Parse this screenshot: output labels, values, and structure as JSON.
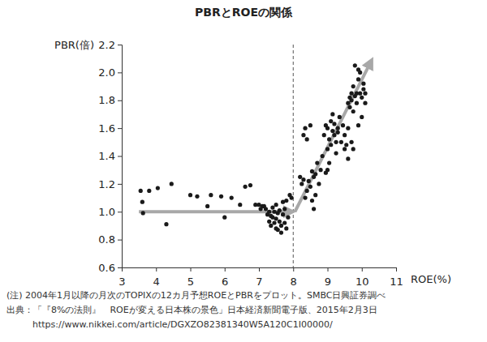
{
  "chart_data": {
    "type": "scatter",
    "title": "PBRとROEの関係",
    "x_label": "ROE(%)",
    "y_label": "PBR(倍)",
    "xlim": [
      3,
      11
    ],
    "ylim": [
      0.6,
      2.2
    ],
    "xticks": [
      3,
      4,
      5,
      6,
      7,
      8,
      9,
      10,
      11
    ],
    "yticks": [
      0.6,
      0.8,
      {
        "value": 1,
        "label": "1.0"
      },
      1.2,
      1.4,
      1.6,
      1.8,
      {
        "value": 2,
        "label": "2.0"
      },
      2.2
    ],
    "grid": false,
    "marker": "circle",
    "color": "#1a1a1a",
    "x": [
      3.55,
      3.6,
      3.62,
      3.8,
      4.05,
      4.3,
      4.45,
      5.0,
      5.2,
      5.5,
      5.6,
      5.9,
      6.0,
      6.2,
      6.45,
      6.6,
      6.75,
      6.9,
      7.0,
      7.05,
      7.1,
      7.15,
      7.2,
      7.25,
      7.3,
      7.3,
      7.35,
      7.35,
      7.4,
      7.4,
      7.45,
      7.45,
      7.5,
      7.5,
      7.5,
      7.55,
      7.55,
      7.6,
      7.6,
      7.65,
      7.65,
      7.7,
      7.7,
      7.75,
      7.75,
      7.8,
      7.8,
      7.85,
      7.9,
      7.95,
      8.2,
      8.25,
      8.3,
      8.35,
      8.4,
      8.45,
      8.5,
      8.55,
      8.55,
      8.6,
      8.6,
      8.65,
      8.65,
      8.7,
      8.75,
      8.8,
      8.3,
      8.35,
      8.4,
      8.5,
      8.85,
      8.9,
      8.95,
      9.0,
      9.0,
      9.05,
      9.05,
      9.1,
      9.1,
      9.15,
      9.15,
      9.2,
      9.2,
      9.25,
      9.25,
      9.3,
      9.3,
      9.35,
      9.4,
      9.45,
      9.5,
      9.5,
      9.0,
      8.95,
      9.55,
      9.6,
      9.6,
      9.65,
      9.65,
      9.7,
      9.7,
      9.75,
      9.75,
      9.8,
      9.8,
      9.85,
      9.85,
      9.9,
      9.9,
      9.95,
      9.95,
      10.0,
      10.0,
      10.05,
      10.05,
      10.1,
      10.1,
      9.7,
      9.75,
      9.9,
      9.6
    ],
    "values": [
      1.15,
      1.07,
      0.99,
      1.15,
      1.17,
      0.91,
      1.2,
      1.12,
      1.11,
      1.04,
      1.12,
      1.11,
      0.96,
      1.1,
      1.05,
      1.18,
      1.19,
      1.05,
      1.05,
      1.02,
      1.04,
      1.04,
      1.02,
      0.98,
      0.93,
      1.0,
      0.97,
      0.9,
      1.03,
      0.96,
      0.92,
      1.0,
      0.88,
      0.95,
      1.05,
      0.99,
      0.87,
      0.93,
      1.01,
      0.9,
      0.85,
      0.98,
      1.07,
      0.92,
      1.02,
      1.08,
      0.88,
      0.96,
      1.12,
      1.1,
      1.25,
      1.2,
      1.23,
      1.1,
      1.15,
      1.22,
      1.18,
      1.08,
      1.29,
      1.02,
      1.25,
      1.27,
      1.12,
      1.35,
      1.2,
      1.3,
      1.55,
      1.6,
      1.52,
      1.62,
      1.4,
      1.55,
      1.62,
      1.45,
      1.6,
      1.52,
      1.35,
      1.65,
      1.48,
      1.58,
      1.7,
      1.55,
      1.63,
      1.5,
      1.42,
      1.6,
      1.57,
      1.68,
      1.5,
      1.62,
      1.55,
      1.45,
      1.3,
      1.28,
      1.48,
      1.38,
      1.6,
      1.75,
      1.82,
      1.8,
      1.85,
      1.72,
      1.9,
      1.83,
      2.05,
      1.78,
      1.85,
      1.95,
      1.62,
      1.85,
      2.0,
      1.68,
      1.82,
      1.88,
      1.92,
      1.85,
      1.78,
      1.5,
      1.45,
      2.02,
      1.78
    ],
    "reference_line": {
      "x": 8
    },
    "trend_arrows": [
      {
        "x": [
          3.5,
          7.9
        ],
        "y": [
          1.0,
          1.0
        ]
      },
      {
        "x": [
          8.05,
          10.25
        ],
        "y": [
          1.0,
          2.07
        ]
      }
    ],
    "notes": [
      "(注) 2004年1月以降の月次のTOPIXの12カ月予想ROEとPBRをプロット。SMBC日興証券調べ",
      "出典：「『8%の法則』　ROEが変える日本株の景色」日本経済新聞電子版、2015年2月3日",
      "https://www.nikkei.com/article/DGXZO82381340W5A120C1I00000/"
    ]
  }
}
